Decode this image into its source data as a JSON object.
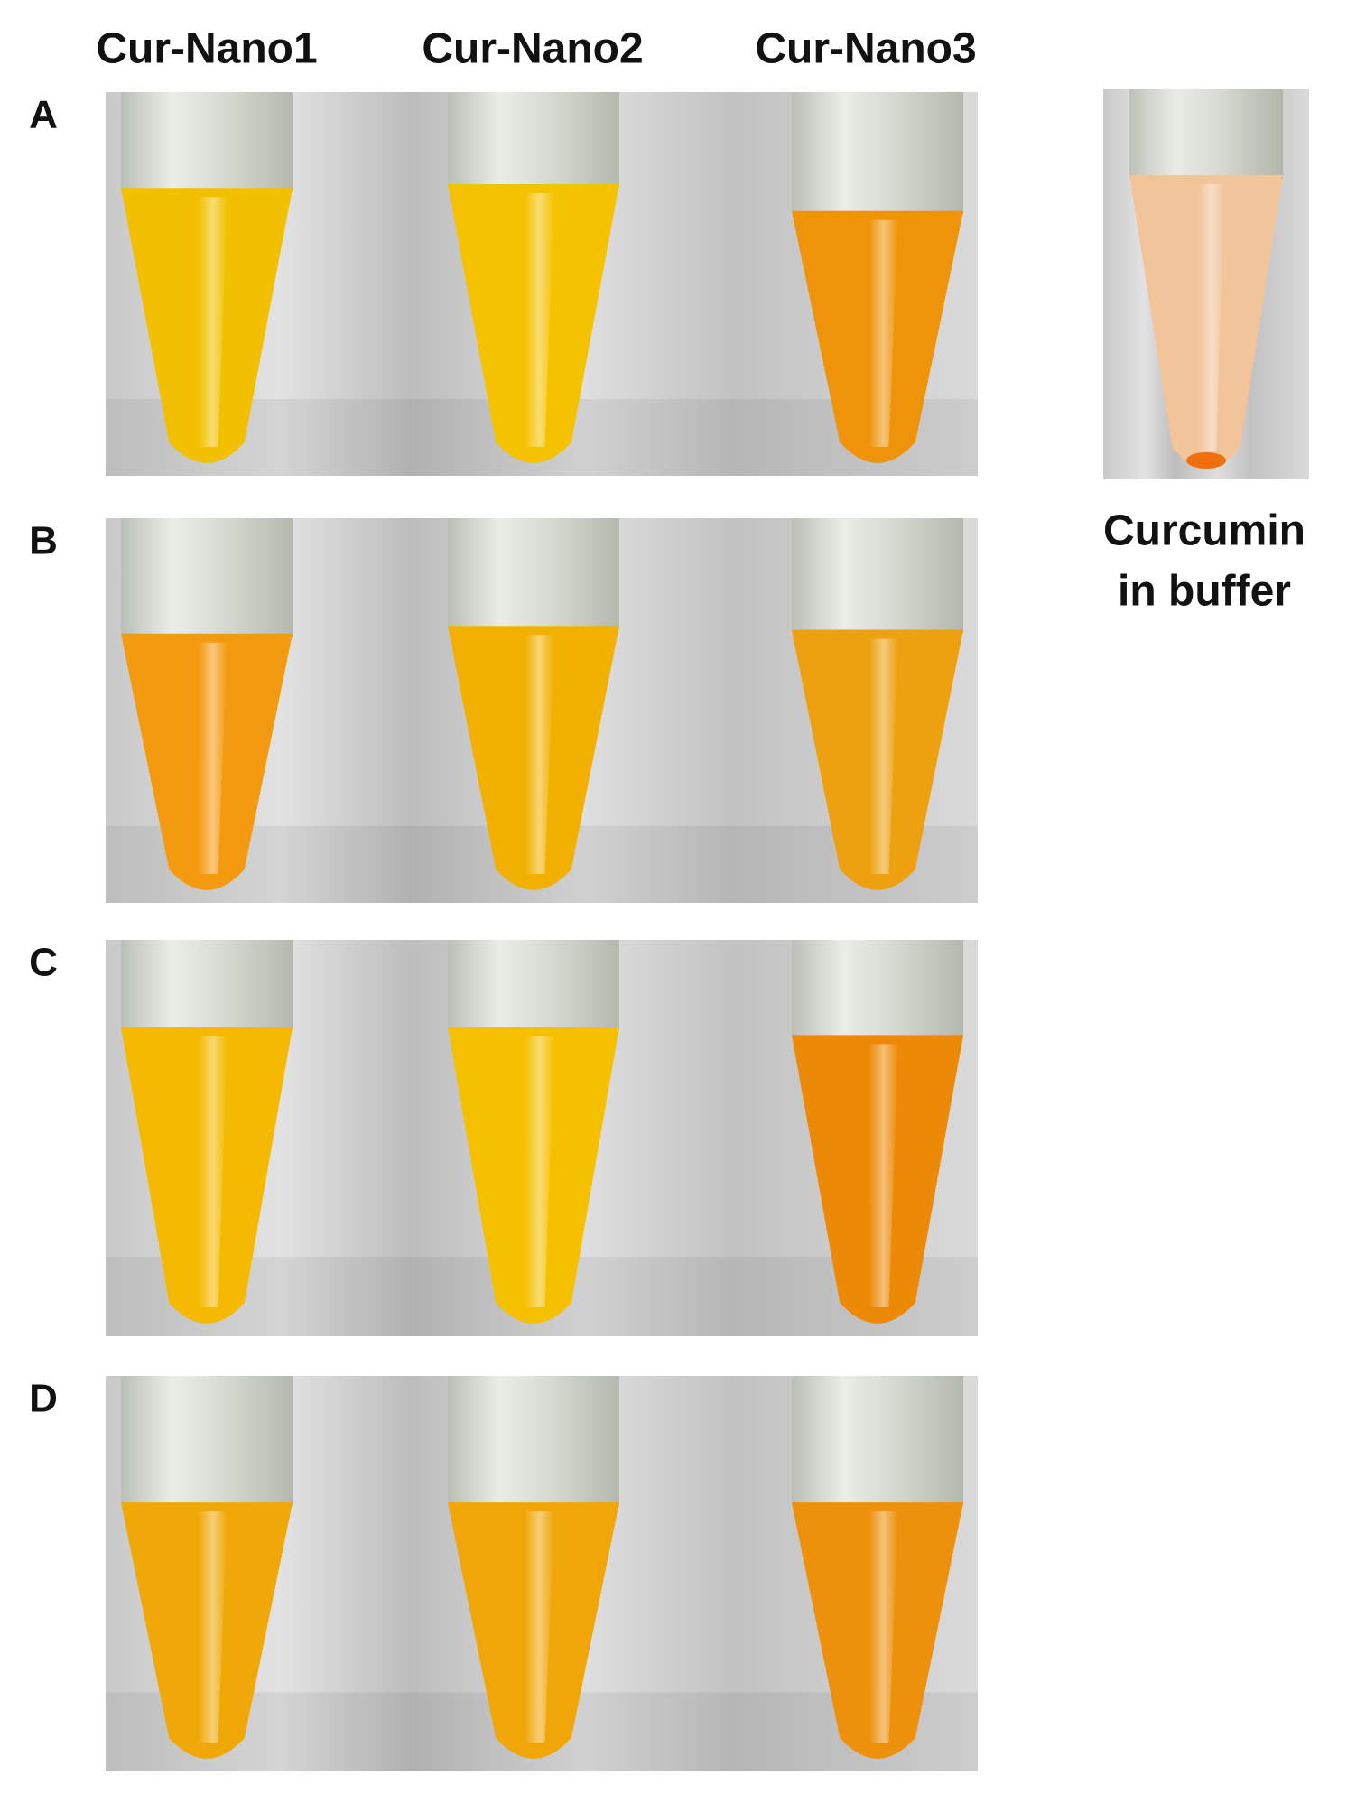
{
  "columns": [
    "Cur-Nano1",
    "Cur-Nano2",
    "Cur-Nano3"
  ],
  "rows": [
    "A",
    "B",
    "C",
    "D"
  ],
  "side_panel": {
    "label_lines": [
      "Curcumin",
      "in buffer"
    ]
  }
}
